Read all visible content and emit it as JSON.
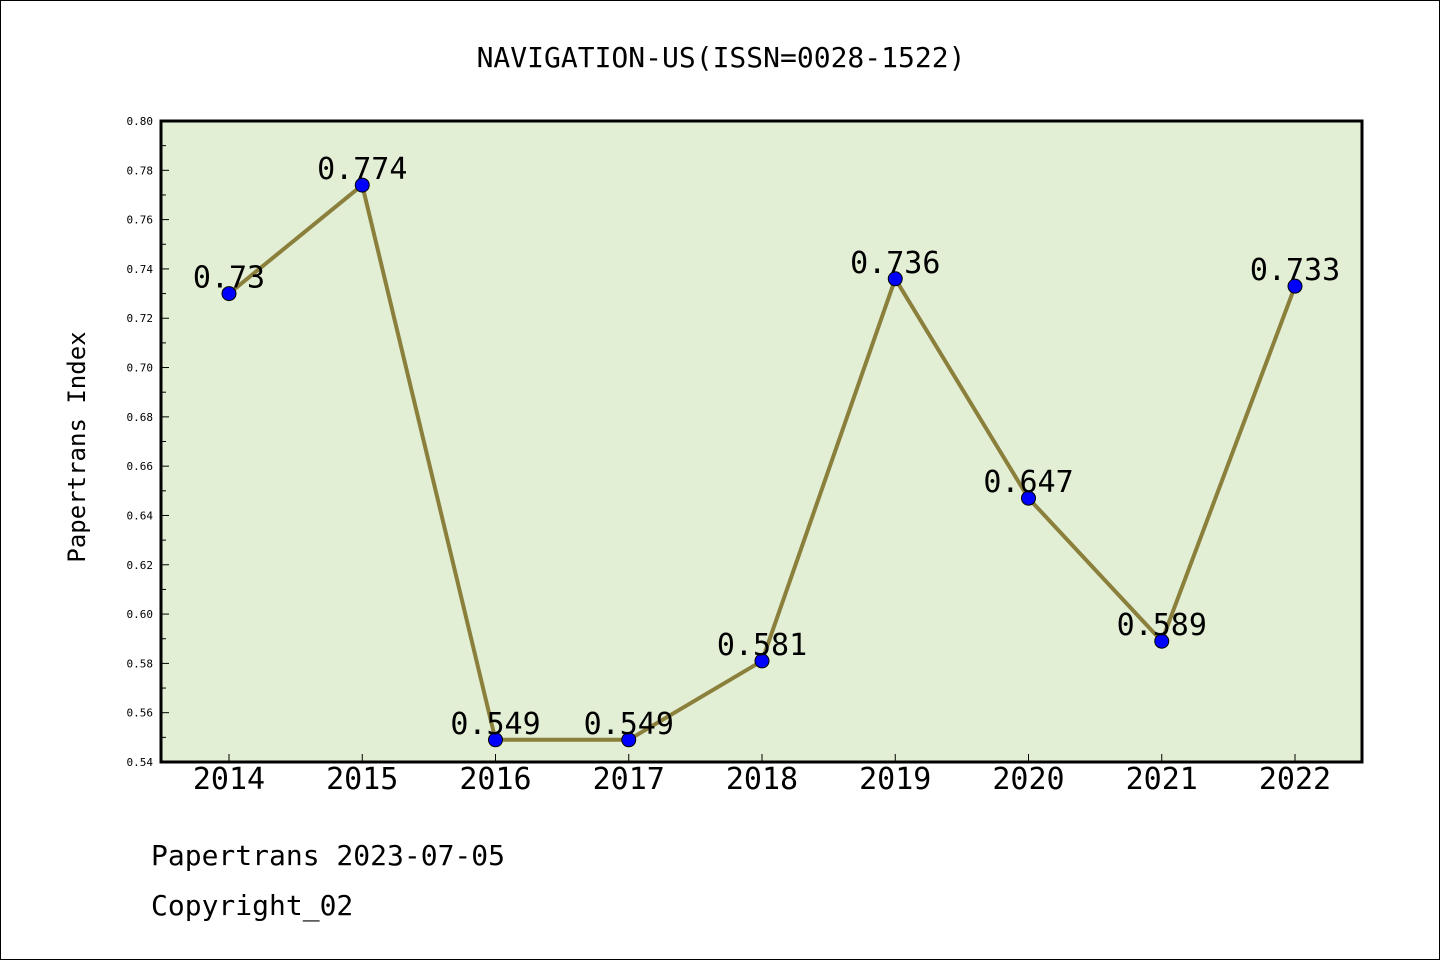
{
  "chart_data": {
    "type": "line",
    "title": "NAVIGATION-US(ISSN=0028-1522)",
    "xlabel": "",
    "ylabel": "Papertrans Index",
    "categories": [
      "2014",
      "2015",
      "2016",
      "2017",
      "2018",
      "2019",
      "2020",
      "2021",
      "2022"
    ],
    "series": [
      {
        "values": [
          0.73,
          0.774,
          0.549,
          0.549,
          0.581,
          0.736,
          0.647,
          0.589,
          0.733
        ]
      }
    ],
    "data_labels": [
      "0.73",
      "0.774",
      "0.549",
      "0.549",
      "0.581",
      "0.736",
      "0.647",
      "0.589",
      "0.733"
    ],
    "ylim": [
      0.54,
      0.8
    ],
    "yticks": [
      "0.54",
      "0.56",
      "0.58",
      "0.60",
      "0.62",
      "0.64",
      "0.66",
      "0.68",
      "0.70",
      "0.72",
      "0.74",
      "0.76",
      "0.78",
      "0.80"
    ],
    "grid": false,
    "colors": {
      "plot_background": "#e2efd5",
      "line": "#8b7f3c",
      "marker": "#0000ff"
    }
  },
  "footer": {
    "line1": "Papertrans 2023-07-05",
    "line2": "Copyright_02"
  }
}
